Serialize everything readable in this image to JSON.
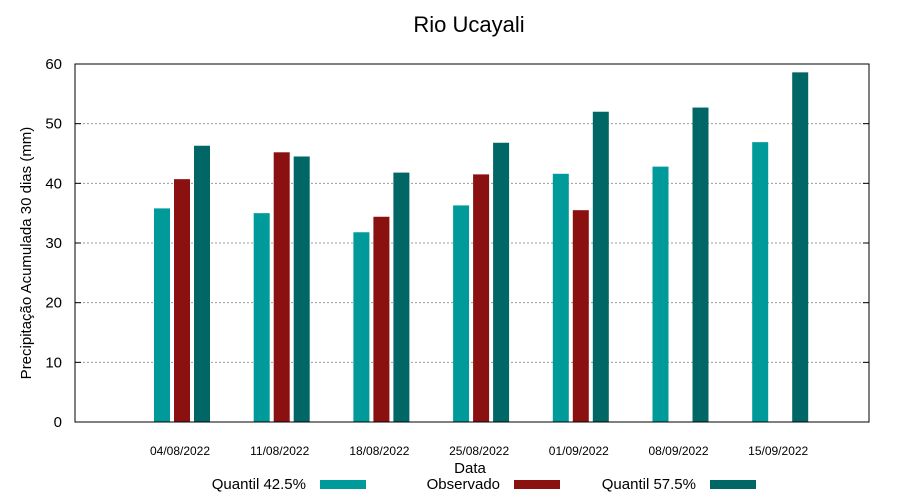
{
  "chart_data": {
    "type": "bar",
    "title": "Rio Ucayali",
    "xlabel": "Data",
    "ylabel": "Precipitação Acumulada 30 dias (mm)",
    "ylim": [
      0,
      60
    ],
    "yticks": [
      0,
      10,
      20,
      30,
      40,
      50,
      60
    ],
    "grid": true,
    "legend_position": "bottom",
    "categories": [
      "04/08/2022",
      "11/08/2022",
      "18/08/2022",
      "25/08/2022",
      "01/09/2022",
      "08/09/2022",
      "15/09/2022"
    ],
    "series": [
      {
        "name": "Quantil 42.5%",
        "color": "#009a9a",
        "values": [
          35.8,
          35.0,
          31.8,
          36.3,
          41.6,
          42.8,
          46.9
        ]
      },
      {
        "name": "Observado",
        "color": "#8b1010",
        "values": [
          40.7,
          45.2,
          34.4,
          41.5,
          35.5,
          null,
          null
        ]
      },
      {
        "name": "Quantil 57.5%",
        "color": "#006666",
        "values": [
          46.3,
          44.5,
          41.8,
          46.8,
          52.0,
          52.7,
          58.6
        ]
      }
    ]
  }
}
